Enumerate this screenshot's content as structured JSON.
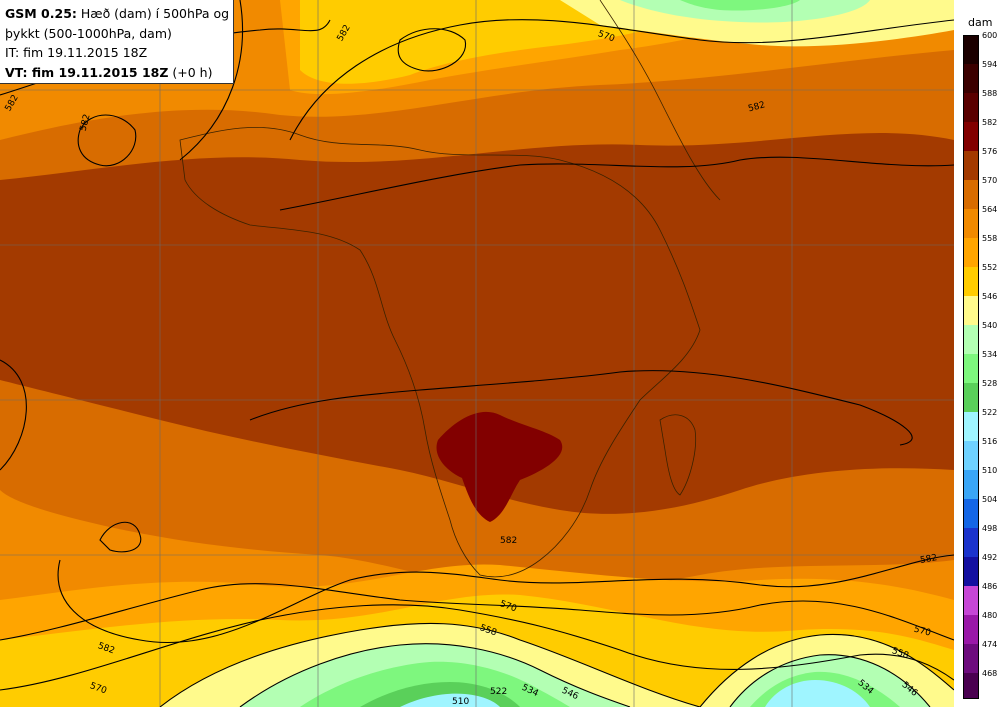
{
  "info": {
    "model": "GSM 0.25:",
    "desc1": "Hæð (dam) í 500hPa og",
    "desc2": "þykkt (500-1000hPa, dam)",
    "it": "IT: fim 19.11.2015 18Z",
    "vt_bold": "VT: fim 19.11.2015 18Z",
    "vt_suffix": "(+0 h)"
  },
  "legend": {
    "unit": "dam",
    "levels": [
      {
        "label": "600",
        "color": "#1b0000"
      },
      {
        "label": "594",
        "color": "#3b0000"
      },
      {
        "label": "588",
        "color": "#5a0000"
      },
      {
        "label": "582",
        "color": "#820000"
      },
      {
        "label": "576",
        "color": "#a33a00"
      },
      {
        "label": "570",
        "color": "#d86c00"
      },
      {
        "label": "564",
        "color": "#f18a00"
      },
      {
        "label": "558",
        "color": "#ffa500"
      },
      {
        "label": "552",
        "color": "#ffcc00"
      },
      {
        "label": "546",
        "color": "#fffa8c"
      },
      {
        "label": "540",
        "color": "#b3ffb3"
      },
      {
        "label": "534",
        "color": "#7ef77e"
      },
      {
        "label": "528",
        "color": "#5ad05a"
      },
      {
        "label": "522",
        "color": "#9ff5ff"
      },
      {
        "label": "516",
        "color": "#6fd2ff"
      },
      {
        "label": "510",
        "color": "#3aa6f7"
      },
      {
        "label": "504",
        "color": "#1466e6"
      },
      {
        "label": "498",
        "color": "#1b33cc"
      },
      {
        "label": "492",
        "color": "#1410a0"
      },
      {
        "label": "486",
        "color": "#c646d6"
      },
      {
        "label": "480",
        "color": "#9a18a8"
      },
      {
        "label": "474",
        "color": "#6e0c7e"
      },
      {
        "label": "468",
        "color": "#4a0050"
      }
    ]
  },
  "contour_labels": [
    {
      "name": "contour-label-582-topleft",
      "text": "582"
    },
    {
      "name": "contour-label-582-nw",
      "text": "582"
    },
    {
      "name": "contour-label-582-top",
      "text": "582"
    },
    {
      "name": "contour-label-570-top",
      "text": "570"
    },
    {
      "name": "contour-label-582-ne",
      "text": "582"
    },
    {
      "name": "contour-label-582-southafrica",
      "text": "582"
    },
    {
      "name": "contour-label-582-east",
      "text": "582"
    },
    {
      "name": "contour-label-582-southwest",
      "text": "582"
    },
    {
      "name": "contour-label-570-southwest",
      "text": "570"
    },
    {
      "name": "contour-label-570-south",
      "text": "570"
    },
    {
      "name": "contour-label-558-south",
      "text": "558"
    },
    {
      "name": "contour-label-570-southeast",
      "text": "570"
    },
    {
      "name": "contour-label-558-southeast",
      "text": "558"
    },
    {
      "name": "contour-label-546-south",
      "text": "546"
    },
    {
      "name": "contour-label-534-south",
      "text": "534"
    },
    {
      "name": "contour-label-522-south",
      "text": "522"
    },
    {
      "name": "contour-label-510-south",
      "text": "510"
    },
    {
      "name": "contour-label-534-southeast",
      "text": "534"
    },
    {
      "name": "contour-label-546-southeast",
      "text": "546"
    }
  ]
}
